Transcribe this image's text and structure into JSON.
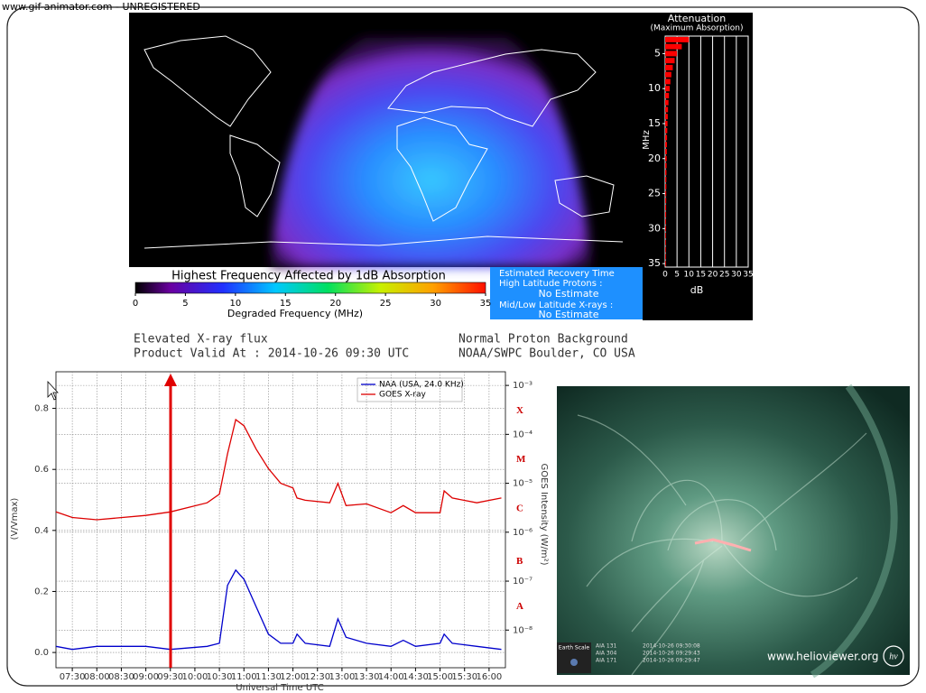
{
  "watermark": "www.gif-animator.com - UNREGISTERED",
  "drap": {
    "attenuation": {
      "title": "Attenuation",
      "subtitle": "(Maximum Absorption)",
      "y_label": "MHz",
      "x_label": "dB",
      "ylim": [
        2.5,
        35.5
      ],
      "yticks": [
        5,
        10,
        15,
        20,
        25,
        30,
        35
      ],
      "xlim": [
        0,
        35
      ],
      "xticks": [
        0,
        5,
        10,
        15,
        20,
        25,
        30,
        35
      ],
      "color": "#ff0000",
      "mhz": [
        3,
        4,
        5,
        6,
        7,
        8,
        9,
        10,
        11,
        12,
        13,
        14,
        15,
        16,
        17,
        18,
        19,
        20,
        21,
        22,
        23,
        24,
        25,
        26,
        27,
        28,
        29,
        30,
        31,
        32,
        33,
        34,
        35
      ],
      "db": [
        10,
        7,
        5,
        4,
        3.2,
        2.6,
        2.2,
        1.9,
        1.6,
        1.4,
        1.2,
        1.1,
        1.0,
        0.9,
        0.8,
        0.75,
        0.7,
        0.65,
        0.6,
        0.55,
        0.5,
        0.5,
        0.45,
        0.45,
        0.4,
        0.4,
        0.35,
        0.35,
        0.3,
        0.3,
        0.3,
        0.3,
        0.3
      ]
    },
    "colorbar": {
      "title": "Highest Frequency Affected by 1dB Absorption",
      "label": "Degraded Frequency (MHz)",
      "lim": [
        0,
        35
      ],
      "ticks": [
        0,
        5,
        10,
        15,
        20,
        25,
        30,
        35
      ]
    },
    "recovery": {
      "title": "Estimated Recovery Time",
      "high_label": "High Latitude Protons :",
      "high_value": "No Estimate",
      "low_label": "Mid/Low Latitude X-rays :",
      "low_value": "No Estimate"
    },
    "status_left": [
      "Elevated X-ray flux",
      "Product Valid At : 2014-10-26 09:30 UTC"
    ],
    "status_right": [
      "Normal Proton Background",
      "NOAA/SWPC Boulder, CO USA"
    ]
  },
  "vlf": {
    "x_label": "Universal Time UTC",
    "y_label": "(V/Vmax)",
    "y2_label": "GOES Intensity (W/m²)",
    "xlim": [
      "07:10",
      "16:20"
    ],
    "xticks": [
      "07:30",
      "08:00",
      "08:30",
      "09:00",
      "09:30",
      "10:00",
      "10:30",
      "11:00",
      "11:30",
      "12:00",
      "12:30",
      "13:00",
      "13:30",
      "14:00",
      "14:30",
      "15:00",
      "15:30",
      "16:00"
    ],
    "ylim": [
      -0.05,
      0.92
    ],
    "yticks": [
      {
        "value": 0,
        "label": "0.0"
      },
      0.2,
      0.4,
      0.6,
      0.8
    ],
    "y2lim": [
      1.7e-09,
      0.0019
    ],
    "y2_log": true,
    "y2ticks": [
      {
        "value": 0.001,
        "label": "10⁻³"
      },
      {
        "value": 0.0001,
        "label": "10⁻⁴"
      },
      {
        "value": 1e-05,
        "label": "10⁻⁵"
      },
      {
        "value": 1e-06,
        "label": "10⁻⁶"
      },
      {
        "value": 1e-07,
        "label": "10⁻⁷"
      },
      {
        "value": 1e-08,
        "label": "10⁻⁸"
      }
    ],
    "flare_classes": [
      {
        "value": 0.0003,
        "label": "X"
      },
      {
        "value": 3e-05,
        "label": "M"
      },
      {
        "value": 3e-06,
        "label": "C"
      },
      {
        "value": 2.5e-07,
        "label": "B"
      },
      {
        "value": 3e-08,
        "label": "A"
      }
    ],
    "grid": true,
    "legend": "top-right",
    "x": [
      "07:10",
      "07:30",
      "08:00",
      "09:00",
      "09:30",
      "10:15",
      "10:30",
      "10:40",
      "10:50",
      "11:00",
      "11:15",
      "11:30",
      "11:45",
      "12:00",
      "12:05",
      "12:15",
      "12:45",
      "12:55",
      "13:05",
      "13:30",
      "14:00",
      "14:15",
      "14:30",
      "15:00",
      "15:05",
      "15:15",
      "15:45",
      "16:15"
    ],
    "series": [
      {
        "name": "NAA (USA, 24.0 KHz)",
        "color": "#0000cc",
        "axis": "y",
        "values": [
          0.02,
          0.01,
          0.02,
          0.02,
          0.01,
          0.02,
          0.03,
          0.22,
          0.27,
          0.24,
          0.15,
          0.06,
          0.03,
          0.03,
          0.06,
          0.03,
          0.02,
          0.11,
          0.05,
          0.03,
          0.02,
          0.04,
          0.02,
          0.03,
          0.06,
          0.03,
          0.02,
          0.01
        ]
      },
      {
        "name": "GOES X-ray",
        "color": "#dd0000",
        "axis": "y2",
        "values": [
          2.6e-06,
          2e-06,
          1.8e-06,
          2.2e-06,
          2.6e-06,
          4e-06,
          6e-06,
          4e-05,
          0.0002,
          0.00015,
          5e-05,
          2e-05,
          1e-05,
          8e-06,
          5e-06,
          4.5e-06,
          4e-06,
          1e-05,
          3.5e-06,
          3.8e-06,
          2.5e-06,
          3.5e-06,
          2.5e-06,
          2.5e-06,
          7e-06,
          5e-06,
          4e-06,
          5e-06
        ]
      }
    ]
  },
  "helioviewer": {
    "site": "www.helioviewer.org",
    "logo": "hv",
    "earth_scale": "Earth Scale",
    "layers": [
      "AIA 131",
      "AIA 304",
      "AIA 171"
    ],
    "times": [
      "2014-10-26 09:30:08",
      "2014-10-26 09:29:43",
      "2014-10-26 09:29:47"
    ]
  }
}
